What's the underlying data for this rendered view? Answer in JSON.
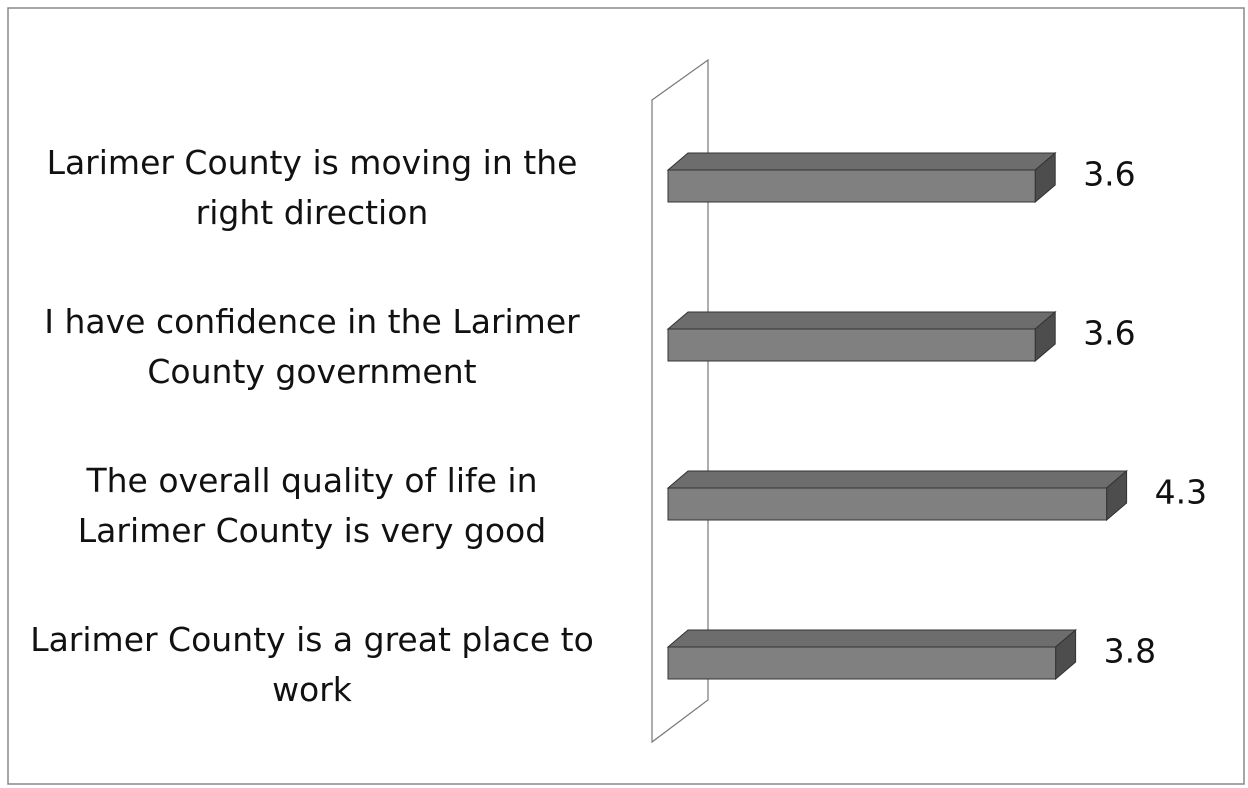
{
  "chart_data": {
    "type": "bar3d_horizontal",
    "categories": [
      "Larimer County is moving in the\nright direction",
      "I have confidence in the Larimer\nCounty government",
      "The overall quality of life in\nLarimer County is very good",
      "Larimer County is a great place to\nwork"
    ],
    "values": [
      3.6,
      3.6,
      4.3,
      3.8
    ],
    "color": "#808080"
  }
}
